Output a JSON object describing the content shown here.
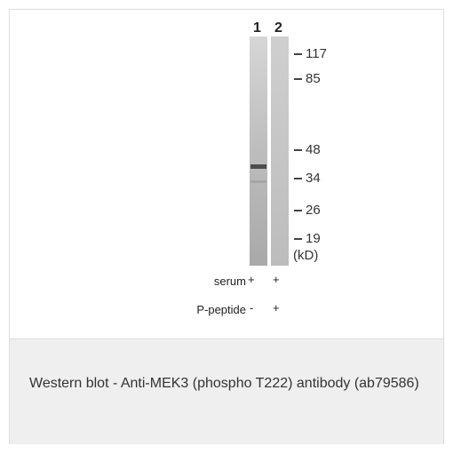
{
  "lanes": [
    "1",
    "2"
  ],
  "markers": [
    "117",
    "85",
    "48",
    "34",
    "26",
    "19"
  ],
  "unit_label": "(kD)",
  "rows": [
    {
      "label": "serum",
      "lane1": "+",
      "lane2": "+"
    },
    {
      "label": "P-peptide",
      "lane1": "-",
      "lane2": "+"
    }
  ],
  "caption": "Western blot - Anti-MEK3 (phospho T222) antibody (ab79586)",
  "colors": {
    "caption_bg": "#efefef",
    "border": "#dcdcdc",
    "text": "#333333"
  }
}
